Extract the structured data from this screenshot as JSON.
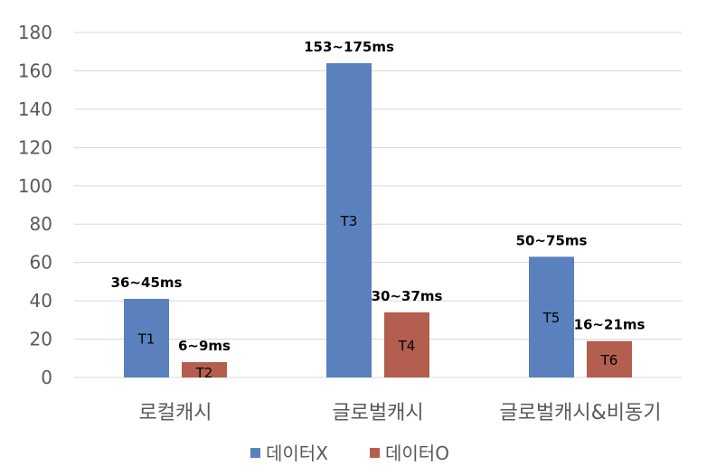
{
  "chart_data": {
    "type": "bar",
    "categories": [
      "로컬캐시",
      "글로벌캐시",
      "글로벌캐시&비동기"
    ],
    "series": [
      {
        "name": "데이터X",
        "color": "#5a80bd",
        "values": [
          41,
          164,
          63
        ],
        "bar_labels": [
          "T1",
          "T3",
          "T5"
        ],
        "range_labels": [
          "36~45ms",
          "153~175ms",
          "50~75ms"
        ]
      },
      {
        "name": "데이터O",
        "color": "#b35e4f",
        "values": [
          8,
          34,
          19
        ],
        "bar_labels": [
          "T2",
          "T4",
          "T6"
        ],
        "range_labels": [
          "6~9ms",
          "30~37ms",
          "16~21ms"
        ]
      }
    ],
    "y_ticks": [
      0,
      20,
      40,
      60,
      80,
      100,
      120,
      140,
      160,
      180
    ],
    "ylim": [
      0,
      180
    ],
    "grid": true,
    "legend_position": "bottom"
  }
}
